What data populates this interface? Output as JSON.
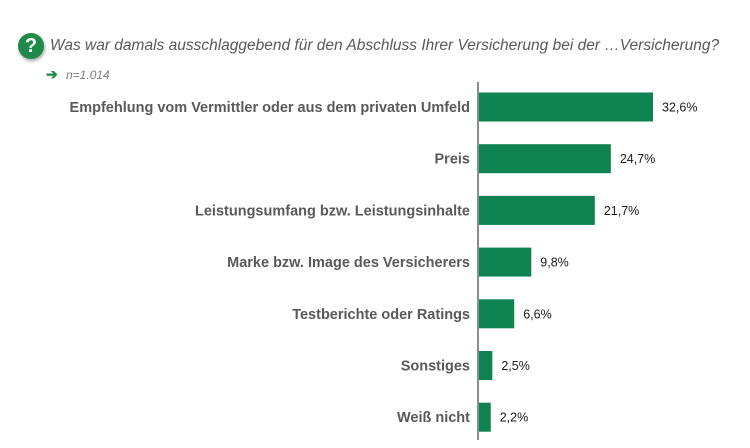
{
  "header": {
    "icon_glyph": "?",
    "question": "Was war damals ausschlaggebend für den Abschluss Ihrer Versicherung bei der …Versicherung?",
    "arrow_glyph": "➔",
    "sample_size": "n=1.014"
  },
  "colors": {
    "bar": "#0e8250",
    "accent": "#1f8a4c",
    "label": "#595959",
    "value": "#1a1a1a",
    "axis": "#404040"
  },
  "icons": [
    "question-mark-icon",
    "arrow-right-icon"
  ],
  "chart_data": {
    "type": "bar",
    "orientation": "horizontal",
    "categories": [
      "Empfehlung vom Vermittler oder aus dem privaten Umfeld",
      "Preis",
      "Leistungsumfang bzw. Leistungsinhalte",
      "Marke bzw. Image des Versicherers",
      "Testberichte oder Ratings",
      "Sonstiges",
      "Weiß nicht"
    ],
    "values": [
      32.6,
      24.7,
      21.7,
      9.8,
      6.6,
      2.5,
      2.2
    ],
    "value_labels": [
      "32,6%",
      "24,7%",
      "21,7%",
      "9,8%",
      "6,6%",
      "2,5%",
      "2,2%"
    ],
    "title": "",
    "xlabel": "",
    "ylabel": "",
    "xlim": [
      0,
      32.6
    ],
    "grid": false,
    "legend": "none"
  }
}
